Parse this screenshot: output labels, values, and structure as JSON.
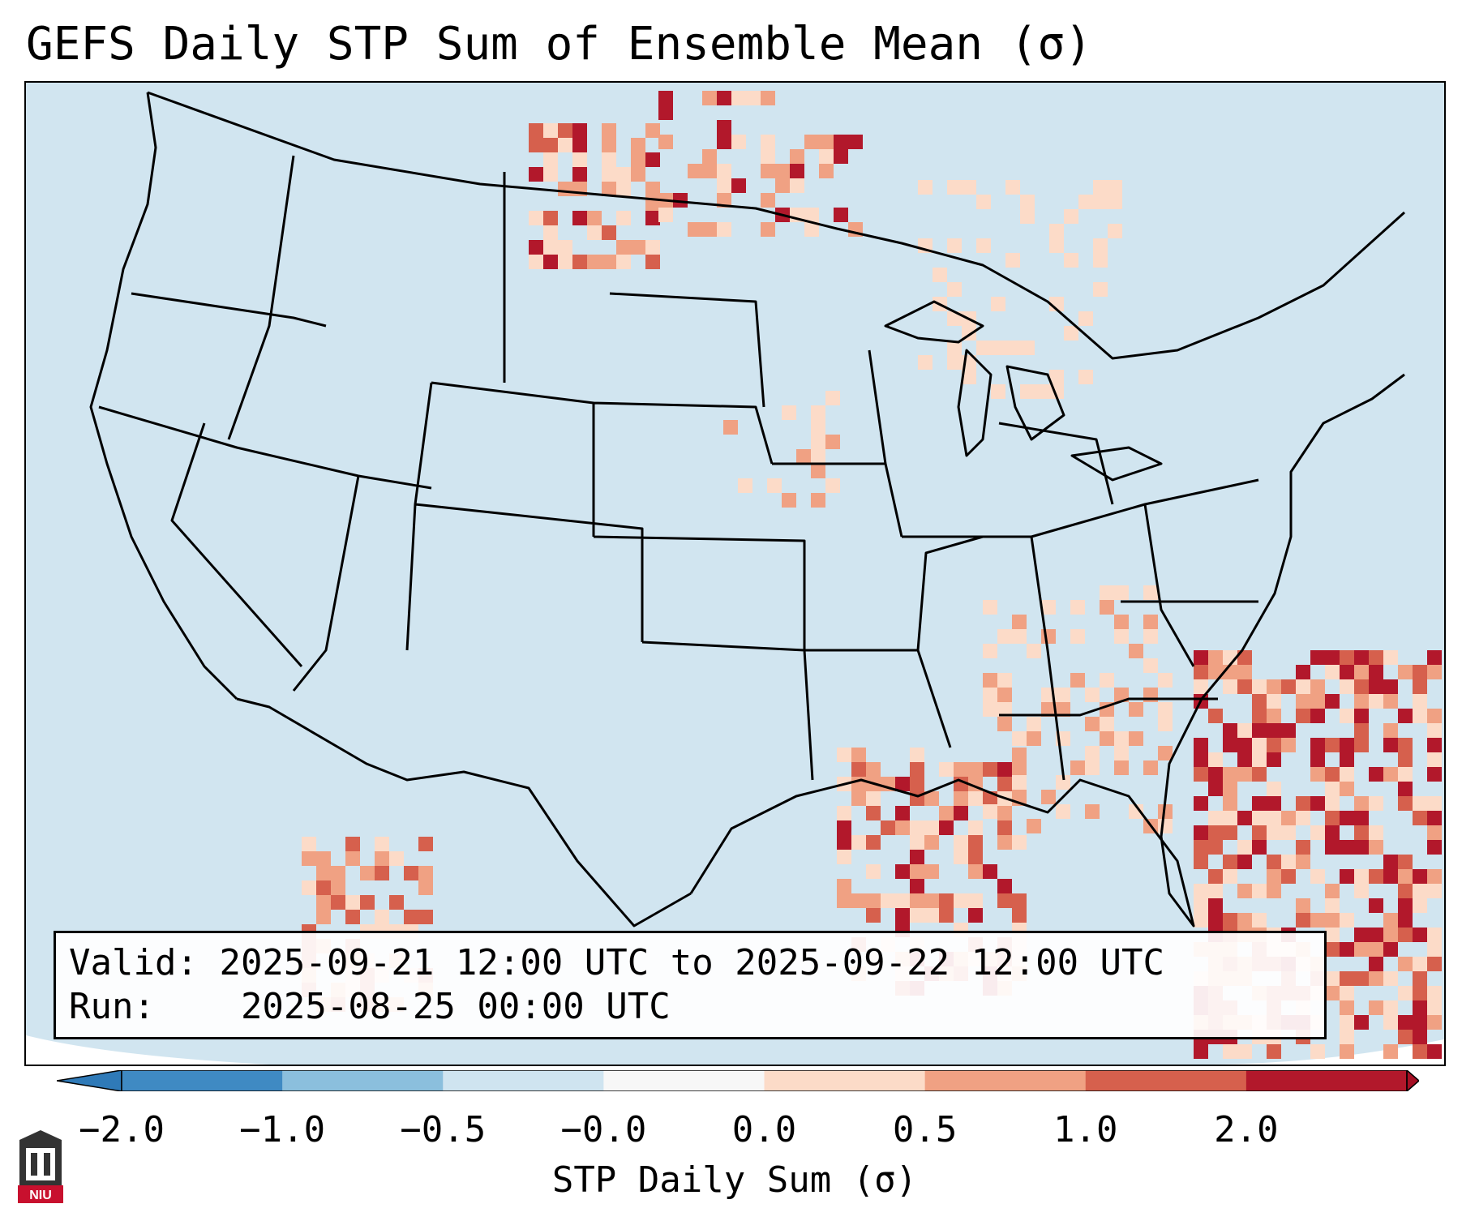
{
  "title": "GEFS Daily STP Sum of Ensemble Mean (σ)",
  "info": {
    "valid_label": "Valid:",
    "valid_value": "2025-09-21 12:00 UTC to 2025-09-22 12:00 UTC",
    "run_label": "Run:",
    "run_value": "2025-08-25 00:00 UTC"
  },
  "colorbar": {
    "label": "STP Daily Sum (σ)",
    "ticks": [
      "−2.0",
      "−1.0",
      "−0.5",
      "−0.0",
      "0.0",
      "0.5",
      "1.0",
      "2.0"
    ],
    "bin_colors": [
      "#3f8ac3",
      "#8bbfdd",
      "#cfe4f0",
      "#f7f7f7",
      "#fcdbc8",
      "#f0a183",
      "#d6604d",
      "#b2182b"
    ],
    "extend": "both"
  },
  "map": {
    "region": "Contiguous United States",
    "background_color": "#d1e5f0",
    "boundary_color": "#000000"
  },
  "logo": {
    "text": "NIU"
  }
}
